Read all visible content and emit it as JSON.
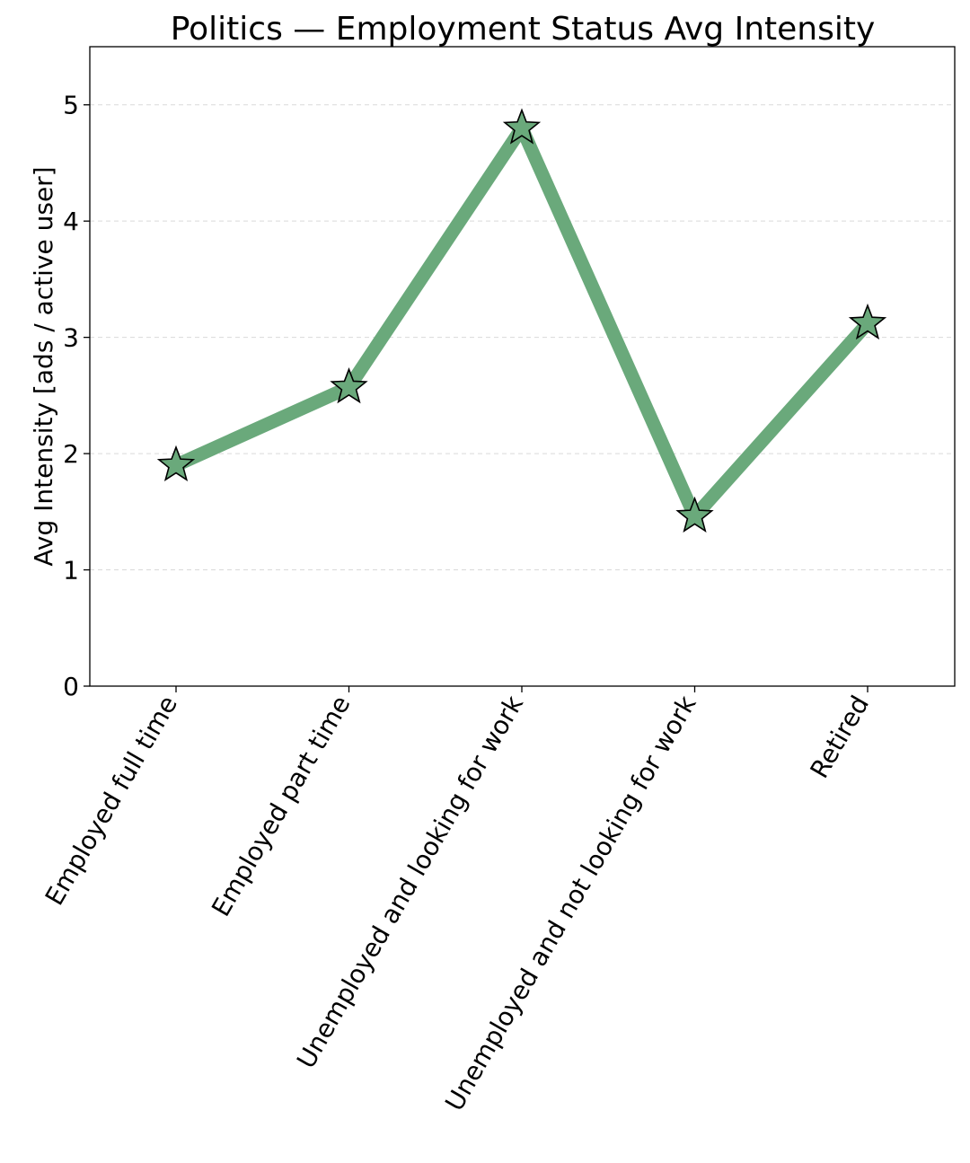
{
  "chart_data": {
    "type": "line",
    "title": "Politics — Employment Status Avg Intensity",
    "xlabel": "",
    "ylabel": "Avg Intensity [ads / active user]",
    "categories": [
      "Employed full time",
      "Employed part time",
      "Unemployed and looking for work",
      "Unemployed and not looking for work",
      "Retired"
    ],
    "series": [
      {
        "name": "Politics",
        "values": [
          1.9,
          2.57,
          4.8,
          1.46,
          3.12
        ],
        "color": "#6aa97b",
        "marker": "star",
        "marker_face_color": "#6aa97b",
        "marker_edge_color": "#000000"
      }
    ],
    "ylim": [
      0,
      5.5
    ],
    "yticks": [
      0,
      1,
      2,
      3,
      4,
      5
    ],
    "grid": "y",
    "legend": "none"
  }
}
